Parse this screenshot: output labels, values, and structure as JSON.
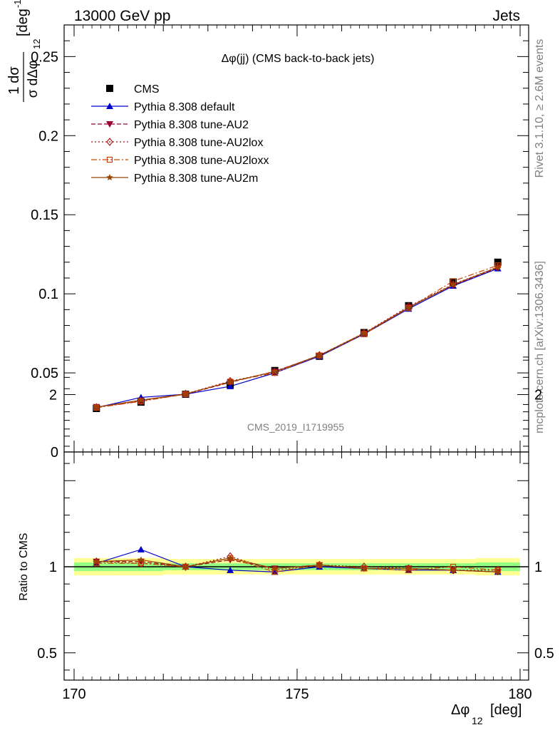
{
  "header": {
    "left": "13000 GeV pp",
    "right": "Jets"
  },
  "side_labels": {
    "rivet": "Rivet 3.1.10, ≥ 2.6M events",
    "mcplots": "mcplots.cern.ch [arXiv:1306.3436]"
  },
  "chart_data": [
    {
      "type": "line",
      "title": "Δφ(jj) (CMS back-to-back jets)",
      "watermark": "CMS_2019_I1719955",
      "ylabel_frac_num": "1",
      "ylabel_frac_top": "dσ",
      "ylabel_frac_bottom": "σ dΔφ",
      "ylabel_sub": "12",
      "ylabel_unit": "[deg",
      "ylabel_unit_sup": "-1",
      "ylabel_unit_close": "]",
      "ylim": [
        0,
        0.27
      ],
      "yticks": [
        0,
        0.05,
        0.1,
        0.15,
        0.2,
        0.25
      ],
      "ytick_labels": [
        "0",
        "0.05",
        "0.1",
        "0.15",
        "0.2",
        "0.25"
      ],
      "xlim": [
        170,
        180
      ],
      "x": [
        170.5,
        171.5,
        172.5,
        173.5,
        174.5,
        175.5,
        176.5,
        177.5,
        178.5,
        179.5
      ],
      "series": [
        {
          "name": "CMS",
          "color": "#000000",
          "marker": "square",
          "line": "none",
          "values": [
            0.0275,
            0.0315,
            0.0365,
            0.0425,
            0.0515,
            0.0605,
            0.0755,
            0.0925,
            0.1075,
            0.12
          ]
        },
        {
          "name": "Pythia 8.308 default",
          "color": "#0000cc",
          "marker": "triangle-up",
          "line": "solid",
          "values": [
            0.028,
            0.0345,
            0.0365,
            0.0415,
            0.05,
            0.0605,
            0.0745,
            0.0905,
            0.105,
            0.116
          ]
        },
        {
          "name": "Pythia 8.308 tune-AU2",
          "color": "#990033",
          "marker": "triangle-down",
          "line": "dashed",
          "values": [
            0.0285,
            0.0325,
            0.0365,
            0.044,
            0.051,
            0.061,
            0.075,
            0.0915,
            0.1055,
            0.1165
          ]
        },
        {
          "name": "Pythia 8.308 tune-AU2lox",
          "color": "#aa1111",
          "marker": "diamond",
          "line": "dotted",
          "values": [
            0.0282,
            0.0322,
            0.0368,
            0.0448,
            0.0505,
            0.0612,
            0.0752,
            0.092,
            0.106,
            0.117
          ]
        },
        {
          "name": "Pythia 8.308 tune-AU2loxx",
          "color": "#cc4400",
          "marker": "open-square",
          "line": "dashdot",
          "values": [
            0.028,
            0.032,
            0.0366,
            0.0445,
            0.05,
            0.061,
            0.0745,
            0.091,
            0.108,
            0.118
          ]
        },
        {
          "name": "Pythia 8.308 tune-AU2m",
          "color": "#994400",
          "marker": "star",
          "line": "solid",
          "values": [
            0.0283,
            0.0328,
            0.0367,
            0.0443,
            0.0508,
            0.0611,
            0.075,
            0.0912,
            0.1058,
            0.1168
          ]
        }
      ]
    },
    {
      "type": "line",
      "ylabel": "Ratio to CMS",
      "xlabel": "Δφ",
      "xlabel_sub": "12",
      "xlabel_unit": "[deg]",
      "ylim": [
        0.35,
        2.25
      ],
      "yticks": [
        0.5,
        1,
        2
      ],
      "ytick_labels": [
        "0.5",
        "1",
        "2"
      ],
      "xlim": [
        170,
        180
      ],
      "xticks": [
        170,
        175,
        180
      ],
      "xtick_labels": [
        "170",
        "175",
        "180"
      ],
      "band_inner": [
        0.025,
        0.025,
        0.02,
        0.02,
        0.02,
        0.02,
        0.02,
        0.02,
        0.02,
        0.025
      ],
      "band_outer": [
        0.05,
        0.05,
        0.045,
        0.045,
        0.045,
        0.045,
        0.045,
        0.045,
        0.045,
        0.05
      ],
      "series": [
        {
          "name": "Pythia 8.308 default",
          "values": [
            1.02,
            1.1,
            1.0,
            0.98,
            0.97,
            1.0,
            0.99,
            0.98,
            0.98,
            0.97
          ]
        },
        {
          "name": "Pythia 8.308 tune-AU2",
          "values": [
            1.03,
            1.03,
            1.0,
            1.04,
            0.99,
            1.01,
            0.99,
            0.99,
            0.98,
            0.97
          ]
        },
        {
          "name": "Pythia 8.308 tune-AU2lox",
          "values": [
            1.03,
            1.02,
            1.0,
            1.06,
            0.98,
            1.01,
            1.0,
            0.99,
            0.98,
            0.98
          ]
        },
        {
          "name": "Pythia 8.308 tune-AU2loxx",
          "values": [
            1.02,
            1.02,
            1.0,
            1.05,
            0.97,
            1.01,
            0.99,
            0.98,
            1.0,
            0.98
          ]
        },
        {
          "name": "Pythia 8.308 tune-AU2m",
          "values": [
            1.03,
            1.04,
            1.0,
            1.05,
            0.99,
            1.01,
            0.99,
            0.99,
            0.98,
            0.97
          ]
        }
      ]
    }
  ]
}
